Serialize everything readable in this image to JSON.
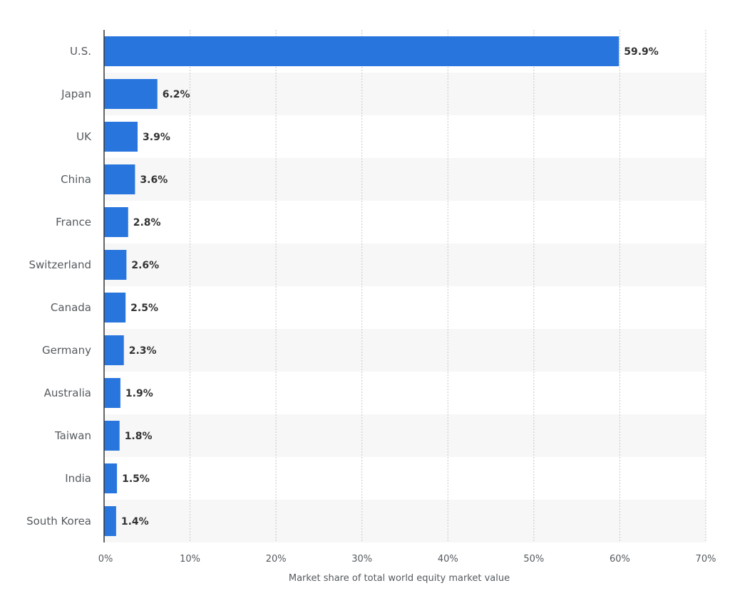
{
  "chart_data": {
    "type": "bar",
    "orientation": "horizontal",
    "categories": [
      "U.S.",
      "Japan",
      "UK",
      "China",
      "France",
      "Switzerland",
      "Canada",
      "Germany",
      "Australia",
      "Taiwan",
      "India",
      "South Korea"
    ],
    "values": [
      59.9,
      6.2,
      3.9,
      3.6,
      2.8,
      2.6,
      2.5,
      2.3,
      1.9,
      1.8,
      1.5,
      1.4
    ],
    "value_labels": [
      "59.9%",
      "6.2%",
      "3.9%",
      "3.6%",
      "2.8%",
      "2.6%",
      "2.5%",
      "2.3%",
      "1.9%",
      "1.8%",
      "1.5%",
      "1.4%"
    ],
    "xlim": [
      0,
      70
    ],
    "x_ticks": [
      0,
      10,
      20,
      30,
      40,
      50,
      60,
      70
    ],
    "x_tick_labels": [
      "0%",
      "10%",
      "20%",
      "30%",
      "40%",
      "50%",
      "60%",
      "70%"
    ],
    "xlabel": "Market share of total world equity market value",
    "ylabel": "",
    "title": "",
    "grid": true,
    "alternating_row_bands": true,
    "legend": "none",
    "colors": {
      "bar": "#2876dd",
      "band": "#f7f7f7",
      "grid": "#c7c7c7",
      "axis": "#333333"
    }
  }
}
